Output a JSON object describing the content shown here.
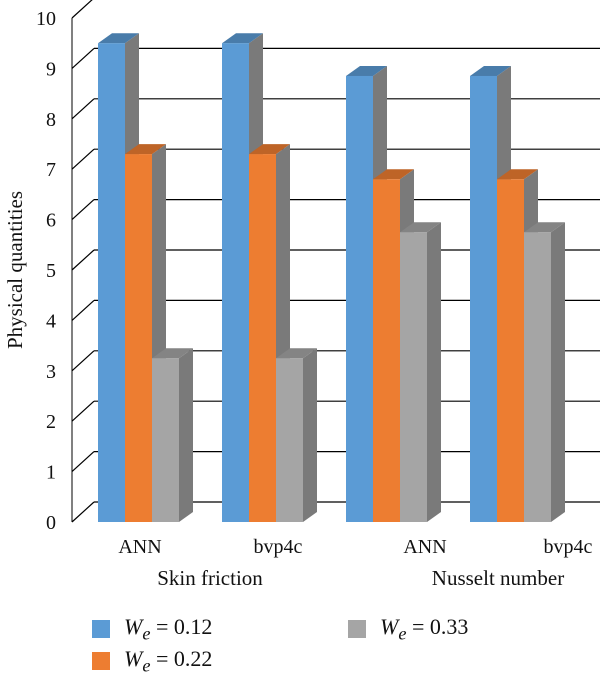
{
  "chart_data": {
    "type": "bar",
    "ylabel": "Physical quantities",
    "ylim": [
      0,
      10
    ],
    "yticks": [
      "0",
      "1",
      "2",
      "3",
      "4",
      "5",
      "6",
      "7",
      "8",
      "9",
      "10"
    ],
    "groups": [
      {
        "label": "Skin friction",
        "categories": [
          "ANN",
          "bvp4c"
        ]
      },
      {
        "label": "Nusselt number",
        "categories": [
          "ANN",
          "bvp4c"
        ]
      }
    ],
    "categories": [
      "ANN",
      "bvp4c",
      "ANN",
      "bvp4c"
    ],
    "series": [
      {
        "name": "W_e = 0.12",
        "values": [
          9.5,
          9.5,
          8.85,
          8.85
        ],
        "color": "#5b9bd5"
      },
      {
        "name": "W_e = 0.22",
        "values": [
          7.3,
          7.3,
          6.8,
          6.8
        ],
        "color": "#ed7d31"
      },
      {
        "name": "W_e = 0.33",
        "values": [
          3.25,
          3.25,
          5.75,
          5.75
        ],
        "color": "#a5a5a5"
      }
    ],
    "legend": [
      {
        "symbol": "W",
        "subscript": "e",
        "rest": " = 0.12"
      },
      {
        "symbol": "W",
        "subscript": "e",
        "rest": " = 0.22"
      },
      {
        "symbol": "W",
        "subscript": "e",
        "rest": " = 0.33"
      }
    ],
    "grid": true,
    "style": "3d"
  }
}
